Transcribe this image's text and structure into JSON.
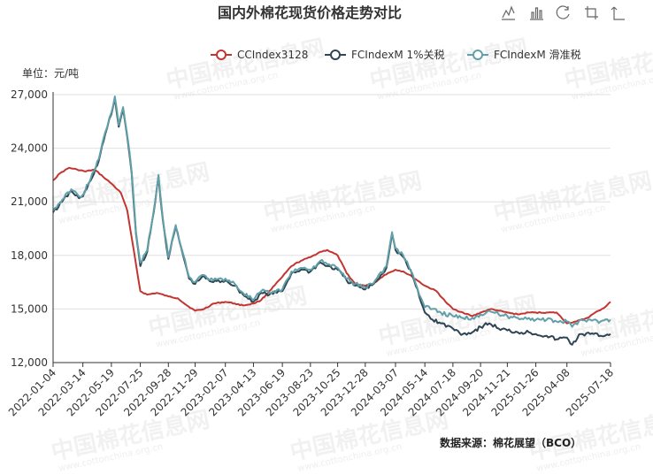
{
  "chart_data": {
    "type": "line",
    "title": "国内外棉花现货价格走势对比",
    "unit_label": "单位：元/吨",
    "source": "数据来源：棉花展望（BCO）",
    "ylim": [
      12000,
      27000
    ],
    "yticks": [
      {
        "v": 12000,
        "label": "12,000"
      },
      {
        "v": 15000,
        "label": "15,000"
      },
      {
        "v": 18000,
        "label": "18,000"
      },
      {
        "v": 21000,
        "label": "21,000"
      },
      {
        "v": 24000,
        "label": "24,000"
      },
      {
        "v": 27000,
        "label": "27,000"
      }
    ],
    "xlim": [
      "2022-01-04",
      "2025-07-18"
    ],
    "xtick_labels": [
      "2022-01-04",
      "2022-03-14",
      "2022-05-19",
      "2022-07-25",
      "2022-09-28",
      "2022-11-29",
      "2023-02-07",
      "2023-04-13",
      "2023-06-19",
      "2023-08-23",
      "2023-10-25",
      "2023-12-28",
      "2024-03-07",
      "2024-05-14",
      "2024-07-18",
      "2024-09-20",
      "2024-11-21",
      "2025-01-26",
      "2025-04-08",
      "2025-07-18"
    ],
    "legend_position": "top-right",
    "grid": true,
    "series": [
      {
        "name": "CCIndex3128",
        "color": "#c23531",
        "points": [
          [
            "2022-01-04",
            22200
          ],
          [
            "2022-01-20",
            22600
          ],
          [
            "2022-02-10",
            22900
          ],
          [
            "2022-03-01",
            22800
          ],
          [
            "2022-03-20",
            22700
          ],
          [
            "2022-04-10",
            22800
          ],
          [
            "2022-04-30",
            22400
          ],
          [
            "2022-05-20",
            22000
          ],
          [
            "2022-06-10",
            21500
          ],
          [
            "2022-06-25",
            20500
          ],
          [
            "2022-07-05",
            19000
          ],
          [
            "2022-07-15",
            17500
          ],
          [
            "2022-07-25",
            16000
          ],
          [
            "2022-08-10",
            15800
          ],
          [
            "2022-09-01",
            15900
          ],
          [
            "2022-09-28",
            15700
          ],
          [
            "2022-10-20",
            15600
          ],
          [
            "2022-11-10",
            15200
          ],
          [
            "2022-11-29",
            14900
          ],
          [
            "2022-12-20",
            15000
          ],
          [
            "2023-01-10",
            15300
          ],
          [
            "2023-02-07",
            15400
          ],
          [
            "2023-03-01",
            15300
          ],
          [
            "2023-03-20",
            15200
          ],
          [
            "2023-04-13",
            15300
          ],
          [
            "2023-05-01",
            15500
          ],
          [
            "2023-05-20",
            16000
          ],
          [
            "2023-06-19",
            16800
          ],
          [
            "2023-07-10",
            17400
          ],
          [
            "2023-08-01",
            17700
          ],
          [
            "2023-08-23",
            17900
          ],
          [
            "2023-09-15",
            18200
          ],
          [
            "2023-10-01",
            18300
          ],
          [
            "2023-10-25",
            18000
          ],
          [
            "2023-11-15",
            17000
          ],
          [
            "2023-12-05",
            16400
          ],
          [
            "2023-12-28",
            16300
          ],
          [
            "2024-01-15",
            16400
          ],
          [
            "2024-02-10",
            16900
          ],
          [
            "2024-03-07",
            17200
          ],
          [
            "2024-03-25",
            17100
          ],
          [
            "2024-04-15",
            16800
          ],
          [
            "2024-05-14",
            16300
          ],
          [
            "2024-06-10",
            16000
          ],
          [
            "2024-07-01",
            15400
          ],
          [
            "2024-07-18",
            15000
          ],
          [
            "2024-08-10",
            14800
          ],
          [
            "2024-09-01",
            14600
          ],
          [
            "2024-09-20",
            14800
          ],
          [
            "2024-10-15",
            15000
          ],
          [
            "2024-11-01",
            14900
          ],
          [
            "2024-11-21",
            14800
          ],
          [
            "2024-12-15",
            14700
          ],
          [
            "2025-01-10",
            14800
          ],
          [
            "2025-01-26",
            14800
          ],
          [
            "2025-02-20",
            14800
          ],
          [
            "2025-03-15",
            14800
          ],
          [
            "2025-04-08",
            14200
          ],
          [
            "2025-04-30",
            14300
          ],
          [
            "2025-05-25",
            14500
          ],
          [
            "2025-06-20",
            14900
          ],
          [
            "2025-07-05",
            15100
          ],
          [
            "2025-07-18",
            15400
          ]
        ]
      },
      {
        "name": "FCIndexM 1%关税",
        "color": "#2f4554",
        "points": [
          [
            "2022-01-04",
            20400
          ],
          [
            "2022-01-25",
            21000
          ],
          [
            "2022-02-15",
            21600
          ],
          [
            "2022-03-05",
            21200
          ],
          [
            "2022-03-14",
            21300
          ],
          [
            "2022-04-01",
            22200
          ],
          [
            "2022-04-20",
            23300
          ],
          [
            "2022-05-05",
            24800
          ],
          [
            "2022-05-19",
            25900
          ],
          [
            "2022-05-27",
            26800
          ],
          [
            "2022-06-05",
            25200
          ],
          [
            "2022-06-15",
            26200
          ],
          [
            "2022-06-25",
            24600
          ],
          [
            "2022-07-05",
            22600
          ],
          [
            "2022-07-15",
            19200
          ],
          [
            "2022-07-25",
            17400
          ],
          [
            "2022-08-10",
            18200
          ],
          [
            "2022-08-25",
            20400
          ],
          [
            "2022-09-05",
            22400
          ],
          [
            "2022-09-15",
            20000
          ],
          [
            "2022-09-28",
            17800
          ],
          [
            "2022-10-15",
            19600
          ],
          [
            "2022-11-01",
            18000
          ],
          [
            "2022-11-15",
            16700
          ],
          [
            "2022-11-29",
            16400
          ],
          [
            "2022-12-15",
            16800
          ],
          [
            "2023-01-10",
            16500
          ],
          [
            "2023-02-07",
            16600
          ],
          [
            "2023-03-01",
            16300
          ],
          [
            "2023-03-20",
            15800
          ],
          [
            "2023-04-13",
            15400
          ],
          [
            "2023-05-01",
            15900
          ],
          [
            "2023-05-20",
            15800
          ],
          [
            "2023-06-19",
            16000
          ],
          [
            "2023-07-10",
            17000
          ],
          [
            "2023-08-01",
            17200
          ],
          [
            "2023-08-23",
            17100
          ],
          [
            "2023-09-15",
            17600
          ],
          [
            "2023-10-01",
            17400
          ],
          [
            "2023-10-25",
            17200
          ],
          [
            "2023-11-15",
            16600
          ],
          [
            "2023-12-05",
            16300
          ],
          [
            "2023-12-28",
            16100
          ],
          [
            "2024-01-20",
            16500
          ],
          [
            "2024-02-15",
            17300
          ],
          [
            "2024-02-28",
            19200
          ],
          [
            "2024-03-07",
            18300
          ],
          [
            "2024-03-25",
            17900
          ],
          [
            "2024-04-15",
            16900
          ],
          [
            "2024-05-01",
            15700
          ],
          [
            "2024-05-14",
            14800
          ],
          [
            "2024-06-01",
            14400
          ],
          [
            "2024-06-20",
            14200
          ],
          [
            "2024-07-18",
            13900
          ],
          [
            "2024-08-10",
            13600
          ],
          [
            "2024-09-01",
            13700
          ],
          [
            "2024-09-20",
            14000
          ],
          [
            "2024-10-10",
            14200
          ],
          [
            "2024-11-01",
            13900
          ],
          [
            "2024-11-21",
            13800
          ],
          [
            "2024-12-15",
            13700
          ],
          [
            "2025-01-10",
            13700
          ],
          [
            "2025-01-26",
            13600
          ],
          [
            "2025-02-20",
            13500
          ],
          [
            "2025-03-15",
            13300
          ],
          [
            "2025-04-08",
            13400
          ],
          [
            "2025-04-20",
            13000
          ],
          [
            "2025-05-10",
            13600
          ],
          [
            "2025-06-01",
            13600
          ],
          [
            "2025-06-25",
            13500
          ],
          [
            "2025-07-18",
            13600
          ]
        ]
      },
      {
        "name": "FCIndexM 滑准税",
        "color": "#61a0a8",
        "points": [
          [
            "2022-01-04",
            20500
          ],
          [
            "2022-01-25",
            21100
          ],
          [
            "2022-02-15",
            21700
          ],
          [
            "2022-03-05",
            21300
          ],
          [
            "2022-03-14",
            21400
          ],
          [
            "2022-04-01",
            22300
          ],
          [
            "2022-04-20",
            23400
          ],
          [
            "2022-05-05",
            24900
          ],
          [
            "2022-05-19",
            26000
          ],
          [
            "2022-05-27",
            26900
          ],
          [
            "2022-06-05",
            25300
          ],
          [
            "2022-06-15",
            26300
          ],
          [
            "2022-06-25",
            24700
          ],
          [
            "2022-07-05",
            22700
          ],
          [
            "2022-07-15",
            19300
          ],
          [
            "2022-07-25",
            17600
          ],
          [
            "2022-08-10",
            18300
          ],
          [
            "2022-08-25",
            20500
          ],
          [
            "2022-09-05",
            22500
          ],
          [
            "2022-09-15",
            20100
          ],
          [
            "2022-09-28",
            17900
          ],
          [
            "2022-10-15",
            19700
          ],
          [
            "2022-11-01",
            18100
          ],
          [
            "2022-11-15",
            16800
          ],
          [
            "2022-11-29",
            16500
          ],
          [
            "2022-12-15",
            16900
          ],
          [
            "2023-01-10",
            16600
          ],
          [
            "2023-02-07",
            16700
          ],
          [
            "2023-03-01",
            16400
          ],
          [
            "2023-03-20",
            15900
          ],
          [
            "2023-04-13",
            15500
          ],
          [
            "2023-05-01",
            16000
          ],
          [
            "2023-05-20",
            15900
          ],
          [
            "2023-06-19",
            16100
          ],
          [
            "2023-07-10",
            17100
          ],
          [
            "2023-08-01",
            17300
          ],
          [
            "2023-08-23",
            17200
          ],
          [
            "2023-09-15",
            17700
          ],
          [
            "2023-10-01",
            17500
          ],
          [
            "2023-10-25",
            17300
          ],
          [
            "2023-11-15",
            16700
          ],
          [
            "2023-12-05",
            16400
          ],
          [
            "2023-12-28",
            16200
          ],
          [
            "2024-01-20",
            16600
          ],
          [
            "2024-02-15",
            17400
          ],
          [
            "2024-02-28",
            19300
          ],
          [
            "2024-03-07",
            18400
          ],
          [
            "2024-03-25",
            18000
          ],
          [
            "2024-04-15",
            17000
          ],
          [
            "2024-05-01",
            15800
          ],
          [
            "2024-05-14",
            15100
          ],
          [
            "2024-06-01",
            15000
          ],
          [
            "2024-06-20",
            14800
          ],
          [
            "2024-07-18",
            14600
          ],
          [
            "2024-08-10",
            14500
          ],
          [
            "2024-09-01",
            14500
          ],
          [
            "2024-09-20",
            14700
          ],
          [
            "2024-10-10",
            14900
          ],
          [
            "2024-11-01",
            14700
          ],
          [
            "2024-11-21",
            14600
          ],
          [
            "2024-12-15",
            14500
          ],
          [
            "2025-01-10",
            14500
          ],
          [
            "2025-01-26",
            14400
          ],
          [
            "2025-02-20",
            14400
          ],
          [
            "2025-03-15",
            14300
          ],
          [
            "2025-04-08",
            14300
          ],
          [
            "2025-04-20",
            14000
          ],
          [
            "2025-05-10",
            14400
          ],
          [
            "2025-06-01",
            14400
          ],
          [
            "2025-06-25",
            14300
          ],
          [
            "2025-07-18",
            14400
          ]
        ]
      }
    ]
  },
  "watermark": {
    "text": "中国棉花信息网",
    "sub": "www.cottonchina.org.cn"
  },
  "toolbox": {
    "icons": [
      "line-chart-icon",
      "bar-chart-icon",
      "restore-icon",
      "crop-icon",
      "back-icon"
    ]
  }
}
